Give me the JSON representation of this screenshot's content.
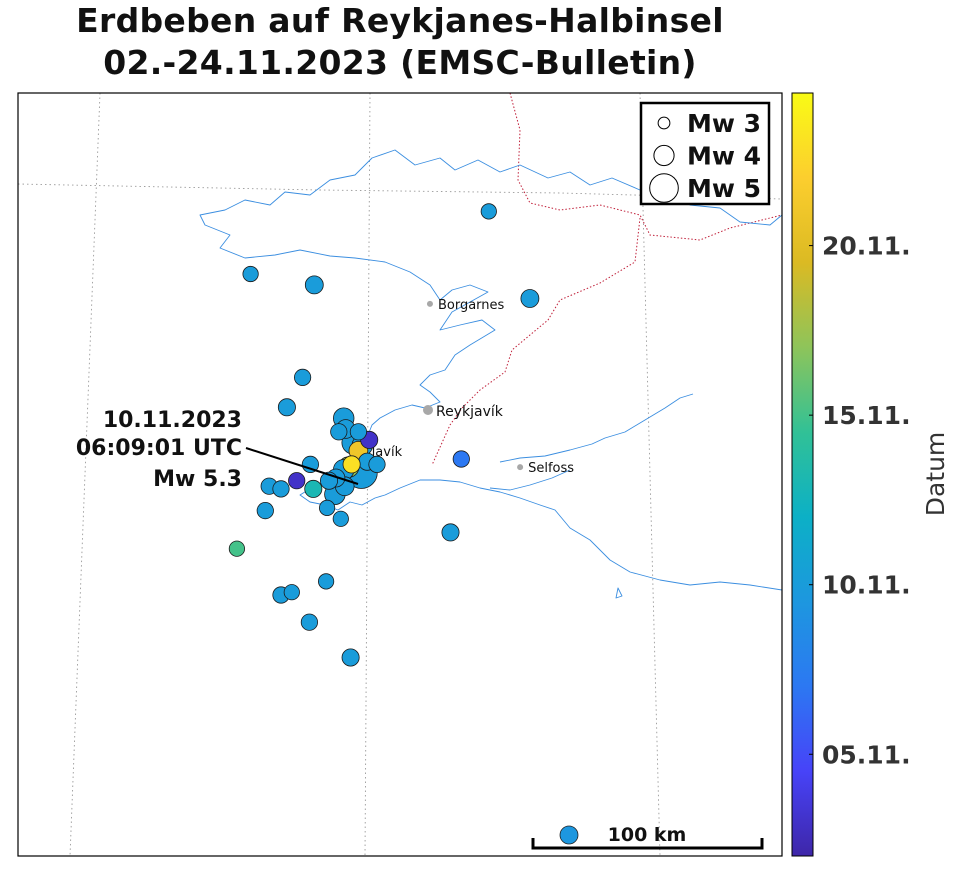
{
  "title": {
    "line1": "Erdbeben auf Reykjanes-Halbinsel",
    "line2": "02.-24.11.2023 (EMSC-Bulletin)"
  },
  "legend": {
    "items": [
      {
        "label": "Mw 3",
        "magnitude": 3
      },
      {
        "label": "Mw 4",
        "magnitude": 4
      },
      {
        "label": "Mw 5",
        "magnitude": 5
      }
    ]
  },
  "colorbar": {
    "label": "Datum",
    "ticks": [
      {
        "label": "05.11.",
        "day": 5
      },
      {
        "label": "10.11.",
        "day": 10
      },
      {
        "label": "15.11.",
        "day": 15
      },
      {
        "label": "20.11.",
        "day": 20
      }
    ],
    "day_range": [
      2,
      24.5
    ],
    "colormap": [
      "#3e26a8",
      "#4743f8",
      "#2c78f2",
      "#1d97df",
      "#0cb0c6",
      "#31c196",
      "#8ec45a",
      "#dbba23",
      "#fcce2e",
      "#f9fb15"
    ]
  },
  "places": [
    {
      "name": "Borgarnes",
      "lon": -21.92,
      "lat": 64.54
    },
    {
      "name": "Reykjavík",
      "lon": -21.94,
      "lat": 64.15
    },
    {
      "name": "Selfoss",
      "lon": -21.0,
      "lat": 63.94
    },
    {
      "name": "Keflavík",
      "lon": -22.56,
      "lat": 64.0
    }
  ],
  "annotation": {
    "line1": "10.11.2023",
    "line2": "06:09:01 UTC",
    "line3": "Mw 5.3"
  },
  "scalebar": {
    "label": "100 km"
  },
  "chart_data": {
    "type": "scatter",
    "title": "Erdbeben auf Reykjanes-Halbinsel 02.-24.11.2023 (EMSC-Bulletin)",
    "colorbar_label": "Datum",
    "points": [
      {
        "lon": -21.32,
        "lat": 64.88,
        "mag": 3.4,
        "day": 10
      },
      {
        "lon": -23.75,
        "lat": 64.65,
        "mag": 3.4,
        "day": 10
      },
      {
        "lon": -23.1,
        "lat": 64.61,
        "mag": 3.7,
        "day": 10
      },
      {
        "lon": -20.9,
        "lat": 64.56,
        "mag": 3.7,
        "day": 10
      },
      {
        "lon": -23.22,
        "lat": 64.27,
        "mag": 3.5,
        "day": 10
      },
      {
        "lon": -23.38,
        "lat": 64.16,
        "mag": 3.6,
        "day": 10
      },
      {
        "lon": -22.8,
        "lat": 64.12,
        "mag": 4.0,
        "day": 10
      },
      {
        "lon": -22.78,
        "lat": 64.08,
        "mag": 3.8,
        "day": 10
      },
      {
        "lon": -22.65,
        "lat": 64.07,
        "mag": 3.5,
        "day": 10
      },
      {
        "lon": -22.54,
        "lat": 64.04,
        "mag": 3.6,
        "day": 3
      },
      {
        "lon": -22.7,
        "lat": 64.03,
        "mag": 4.3,
        "day": 10
      },
      {
        "lon": -22.61,
        "lat": 64.02,
        "mag": 4.0,
        "day": 10
      },
      {
        "lon": -22.65,
        "lat": 64.0,
        "mag": 3.8,
        "day": 21
      },
      {
        "lon": -22.56,
        "lat": 63.96,
        "mag": 3.6,
        "day": 10
      },
      {
        "lon": -22.46,
        "lat": 63.95,
        "mag": 3.5,
        "day": 10
      },
      {
        "lon": -21.6,
        "lat": 63.97,
        "mag": 3.5,
        "day": 7
      },
      {
        "lon": -23.14,
        "lat": 63.95,
        "mag": 3.5,
        "day": 10
      },
      {
        "lon": -22.72,
        "lat": 63.95,
        "mag": 3.6,
        "day": 23
      },
      {
        "lon": -22.75,
        "lat": 63.94,
        "mag": 4.0,
        "day": 17
      },
      {
        "lon": -22.8,
        "lat": 63.93,
        "mag": 4.0,
        "day": 10
      },
      {
        "lon": -22.88,
        "lat": 63.9,
        "mag": 3.7,
        "day": 10
      },
      {
        "lon": -22.95,
        "lat": 63.89,
        "mag": 3.6,
        "day": 10
      },
      {
        "lon": -23.28,
        "lat": 63.89,
        "mag": 3.5,
        "day": 3
      },
      {
        "lon": -23.11,
        "lat": 63.86,
        "mag": 3.6,
        "day": 13
      },
      {
        "lon": -22.89,
        "lat": 63.84,
        "mag": 4.0,
        "day": 10
      },
      {
        "lon": -22.79,
        "lat": 63.87,
        "mag": 3.8,
        "day": 10
      },
      {
        "lon": -23.56,
        "lat": 63.87,
        "mag": 3.5,
        "day": 10
      },
      {
        "lon": -23.44,
        "lat": 63.86,
        "mag": 3.5,
        "day": 10
      },
      {
        "lon": -23.6,
        "lat": 63.78,
        "mag": 3.5,
        "day": 10
      },
      {
        "lon": -22.97,
        "lat": 63.79,
        "mag": 3.4,
        "day": 10
      },
      {
        "lon": -22.83,
        "lat": 63.75,
        "mag": 3.4,
        "day": 10
      },
      {
        "lon": -21.71,
        "lat": 63.7,
        "mag": 3.6,
        "day": 10
      },
      {
        "lon": -23.89,
        "lat": 63.64,
        "mag": 3.4,
        "day": 15
      },
      {
        "lon": -22.98,
        "lat": 63.52,
        "mag": 3.4,
        "day": 10
      },
      {
        "lon": -23.44,
        "lat": 63.47,
        "mag": 3.5,
        "day": 10
      },
      {
        "lon": -23.33,
        "lat": 63.48,
        "mag": 3.4,
        "day": 10
      },
      {
        "lon": -23.15,
        "lat": 63.37,
        "mag": 3.5,
        "day": 10
      },
      {
        "lon": -22.73,
        "lat": 63.24,
        "mag": 3.6,
        "day": 10
      },
      {
        "lon": -22.85,
        "lat": 64.07,
        "mag": 3.5,
        "day": 10
      },
      {
        "lon": -22.62,
        "lat": 63.92,
        "mag": 5.3,
        "day": 10
      }
    ]
  }
}
